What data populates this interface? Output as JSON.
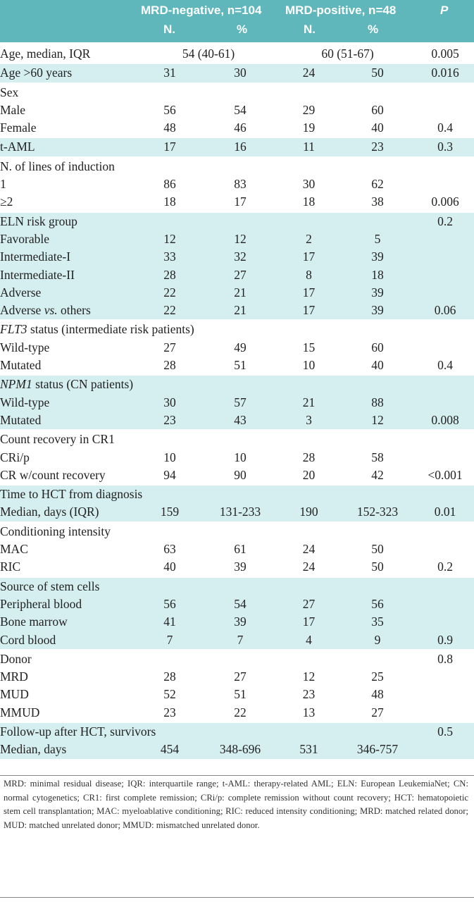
{
  "header": {
    "neg_group": "MRD-negative, n=104",
    "pos_group": "MRD-positive, n=48",
    "p_label": "P",
    "neg_n": "N.",
    "neg_pct": "%",
    "pos_n": "N.",
    "pos_pct": "%"
  },
  "age_median": {
    "label": "Age, median, IQR",
    "neg": "54 (40-61)",
    "pos": "60 (51-67)",
    "p": "0.005"
  },
  "age_gt60": {
    "label": "Age >60 years",
    "v": [
      "31",
      "30",
      "24",
      "50"
    ],
    "p": "0.016"
  },
  "sex": {
    "title": "Sex",
    "rows": [
      {
        "label": "Male",
        "v": [
          "56",
          "54",
          "29",
          "60"
        ],
        "p": ""
      },
      {
        "label": "Female",
        "v": [
          "48",
          "46",
          "19",
          "40"
        ],
        "p": "0.4"
      }
    ]
  },
  "taml": {
    "label": "t-AML",
    "v": [
      "17",
      "16",
      "11",
      "23"
    ],
    "p": "0.3"
  },
  "lines": {
    "title": "N. of lines of induction",
    "rows": [
      {
        "label": "1",
        "v": [
          "86",
          "83",
          "30",
          "62"
        ],
        "p": ""
      },
      {
        "label": "≥2",
        "v": [
          "18",
          "17",
          "18",
          "38"
        ],
        "p": "0.006"
      }
    ]
  },
  "eln": {
    "title": "ELN risk group",
    "title_p": "0.2",
    "rows": [
      {
        "label": "Favorable",
        "v": [
          "12",
          "12",
          "2",
          "5"
        ],
        "p": ""
      },
      {
        "label": "Intermediate-I",
        "v": [
          "33",
          "32",
          "17",
          "39"
        ],
        "p": ""
      },
      {
        "label": "Intermediate-II",
        "v": [
          "28",
          "27",
          "8",
          "18"
        ],
        "p": ""
      },
      {
        "label": "Adverse",
        "v": [
          "22",
          "21",
          "17",
          "39"
        ],
        "p": ""
      }
    ],
    "adverse_vs": {
      "label_a": "Adverse ",
      "label_b": "vs.",
      "label_c": " others",
      "v": [
        "22",
        "21",
        "17",
        "39"
      ],
      "p": "0.06"
    }
  },
  "flt3": {
    "title_gene": "FLT3",
    "title_rest": " status (intermediate risk patients)",
    "rows": [
      {
        "label": "Wild-type",
        "v": [
          "27",
          "49",
          "15",
          "60"
        ],
        "p": ""
      },
      {
        "label": "Mutated",
        "v": [
          "28",
          "51",
          "10",
          "40"
        ],
        "p": "0.4"
      }
    ]
  },
  "npm1": {
    "title_gene": "NPM1",
    "title_rest": " status (CN patients)",
    "rows": [
      {
        "label": "Wild-type",
        "v": [
          "30",
          "57",
          "21",
          "88"
        ],
        "p": ""
      },
      {
        "label": "Mutated",
        "v": [
          "23",
          "43",
          "3",
          "12"
        ],
        "p": "0.008"
      }
    ]
  },
  "count_recovery": {
    "title": "Count recovery in CR1",
    "rows": [
      {
        "label": "CRi/p",
        "v": [
          "10",
          "10",
          "28",
          "58"
        ],
        "p": ""
      },
      {
        "label": "CR w/count recovery",
        "v": [
          "94",
          "90",
          "20",
          "42"
        ],
        "p": "<0.001"
      }
    ]
  },
  "time_hct": {
    "title": "Time to HCT from diagnosis",
    "row": {
      "label": "Median, days (IQR)",
      "v": [
        "159",
        "131-233",
        "190",
        "152-323"
      ],
      "p": "0.01"
    }
  },
  "conditioning": {
    "title": "Conditioning intensity",
    "rows": [
      {
        "label": "MAC",
        "v": [
          "63",
          "61",
          "24",
          "50"
        ],
        "p": ""
      },
      {
        "label": "RIC",
        "v": [
          "40",
          "39",
          "24",
          "50"
        ],
        "p": "0.2"
      }
    ]
  },
  "source": {
    "title": "Source of stem cells",
    "rows": [
      {
        "label": "Peripheral blood",
        "v": [
          "56",
          "54",
          "27",
          "56"
        ],
        "p": ""
      },
      {
        "label": "Bone marrow",
        "v": [
          "41",
          "39",
          "17",
          "35"
        ],
        "p": ""
      },
      {
        "label": "Cord blood",
        "v": [
          "7",
          "7",
          "4",
          "9"
        ],
        "p": "0.9"
      }
    ]
  },
  "donor": {
    "title": "Donor",
    "title_p": "0.8",
    "rows": [
      {
        "label": "MRD",
        "v": [
          "28",
          "27",
          "12",
          "25"
        ],
        "p": ""
      },
      {
        "label": "MUD",
        "v": [
          "52",
          "51",
          "23",
          "48"
        ],
        "p": ""
      },
      {
        "label": "MMUD",
        "v": [
          "23",
          "22",
          "13",
          "27"
        ],
        "p": ""
      }
    ]
  },
  "followup": {
    "title": "Follow-up after HCT, survivors",
    "title_p": "0.5",
    "row": {
      "label": "Median, days",
      "v": [
        "454",
        "348-696",
        "531",
        "346-757"
      ],
      "p": ""
    }
  },
  "footnote": "MRD: minimal residual disease; IQR: interquartile range; t-AML: therapy-related AML; ELN: European LeukemiaNet; CN: normal cytogenetics; CR1: first complete remission; CRi/p: complete remission without count recovery; HCT: hematopoietic stem cell transplantation; MAC: myeloablative conditioning; RIC: reduced intensity conditioning; MRD: matched related donor; MUD: matched unrelated donor; MMUD: mismatched unrelated donor."
}
